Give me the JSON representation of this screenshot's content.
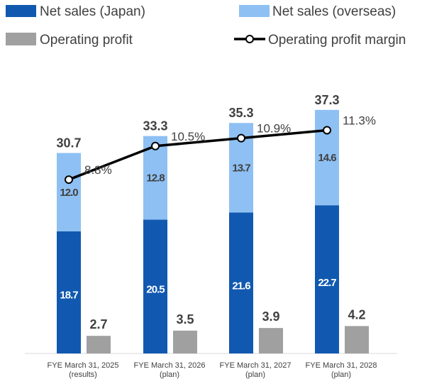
{
  "chart_data": {
    "type": "bar",
    "categories": [
      [
        "FYE March 31, 2025",
        "(results)"
      ],
      [
        "FYE March 31, 2026",
        "(plan)"
      ],
      [
        "FYE March 31, 2027",
        "(plan)"
      ],
      [
        "FYE March 31, 2028",
        "(plan)"
      ]
    ],
    "series": [
      {
        "name": "Net sales (Japan)",
        "kind": "stacked-bar",
        "color": "#1159B0",
        "values": [
          18.7,
          20.5,
          21.6,
          22.7
        ]
      },
      {
        "name": "Net sales (overseas)",
        "kind": "stacked-bar",
        "color": "#8EC0F3",
        "values": [
          12.0,
          12.8,
          13.7,
          14.6
        ]
      },
      {
        "name": "Operating profit",
        "kind": "bar",
        "color": "#A0A0A0",
        "values": [
          2.7,
          3.5,
          3.9,
          4.2
        ]
      },
      {
        "name": "Operating profit margin",
        "kind": "line",
        "color": "#000000",
        "values": [
          8.8,
          10.5,
          10.9,
          11.3
        ],
        "unit": "%"
      }
    ],
    "totals": [
      30.7,
      33.3,
      35.3,
      37.3
    ],
    "segment_labels": {
      "japan": [
        "18.7",
        "20.5",
        "21.6",
        "22.7"
      ],
      "overseas": [
        "12.0",
        "12.8",
        "13.7",
        "14.6"
      ]
    },
    "total_labels": [
      "30.7",
      "33.3",
      "35.3",
      "37.3"
    ],
    "op_labels": [
      "2.7",
      "3.5",
      "3.9",
      "4.2"
    ],
    "margin_labels": [
      "8.8%",
      "10.5%",
      "10.9%",
      "11.3%"
    ],
    "ylim": [
      0,
      40
    ],
    "margin_ylim": [
      0,
      12
    ],
    "legend_position": "top",
    "grid": false,
    "title": "",
    "xlabel": "",
    "ylabel": ""
  }
}
